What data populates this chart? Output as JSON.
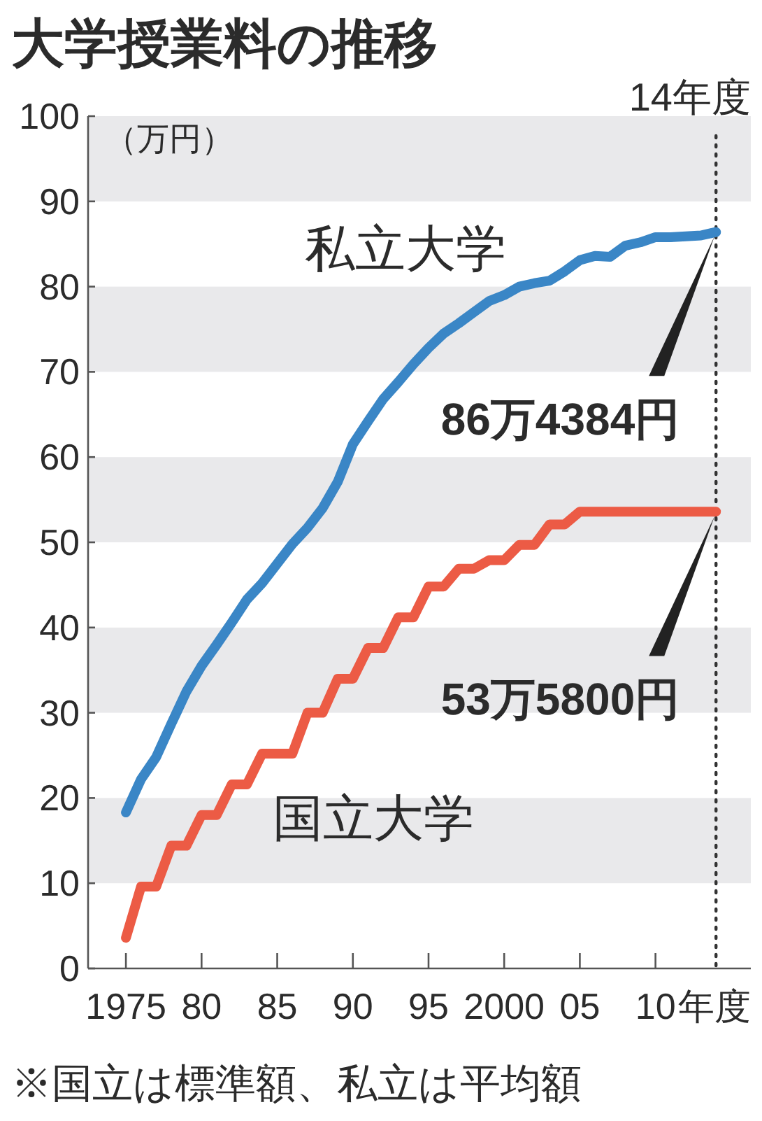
{
  "chart_data": {
    "type": "line",
    "title": "大学授業料の推移",
    "ylabel": "（万円）",
    "xlabel": "年度",
    "x": [
      1975,
      1976,
      1977,
      1978,
      1979,
      1980,
      1981,
      1982,
      1983,
      1984,
      1985,
      1986,
      1987,
      1988,
      1989,
      1990,
      1991,
      1992,
      1993,
      1994,
      1995,
      1996,
      1997,
      1998,
      1999,
      2000,
      2001,
      2002,
      2003,
      2004,
      2005,
      2006,
      2007,
      2008,
      2009,
      2010,
      2011,
      2012,
      2013,
      2014
    ],
    "series": [
      {
        "name": "私立大学",
        "color": "#3a86c6",
        "values": [
          18.3,
          22.2,
          24.8,
          28.7,
          32.5,
          35.5,
          38.0,
          40.6,
          43.3,
          45.2,
          47.5,
          49.8,
          51.7,
          54.0,
          57.1,
          61.5,
          64.2,
          66.8,
          68.8,
          70.9,
          72.8,
          74.5,
          75.7,
          77.0,
          78.3,
          79.0,
          80.0,
          80.4,
          80.7,
          81.8,
          83.1,
          83.6,
          83.5,
          84.8,
          85.2,
          85.8,
          85.8,
          85.9,
          86.0,
          86.4
        ]
      },
      {
        "name": "国立大学",
        "color": "#ec5b45",
        "values": [
          3.6,
          9.6,
          9.6,
          14.4,
          14.4,
          18.0,
          18.0,
          21.6,
          21.6,
          25.2,
          25.2,
          25.2,
          30.0,
          30.0,
          34.0,
          34.0,
          37.6,
          37.6,
          41.2,
          41.2,
          44.8,
          44.8,
          46.9,
          46.9,
          47.9,
          47.9,
          49.7,
          49.7,
          52.1,
          52.1,
          53.6,
          53.6,
          53.6,
          53.6,
          53.6,
          53.6,
          53.6,
          53.6,
          53.6,
          53.6
        ]
      }
    ],
    "xlim": [
      1972.5,
      2016.3
    ],
    "ylim": [
      0,
      100
    ],
    "xticks": [
      1975,
      {
        "value": 1980,
        "label": "80"
      },
      {
        "value": 1985,
        "label": "85"
      },
      {
        "value": 1990,
        "label": "90"
      },
      {
        "value": 1995,
        "label": "95"
      },
      2000,
      {
        "value": 2005,
        "label": "05"
      },
      {
        "value": 2010,
        "label": "10"
      }
    ],
    "yticks": [
      0,
      10,
      20,
      30,
      40,
      50,
      60,
      70,
      80,
      90,
      100
    ],
    "legend": false,
    "line_style": "solid",
    "bands": [
      {
        "axis": "y",
        "from": 10,
        "to": 20,
        "color": "#e9e9eb"
      },
      {
        "axis": "y",
        "from": 30,
        "to": 40,
        "color": "#e9e9eb"
      },
      {
        "axis": "y",
        "from": 50,
        "to": 60,
        "color": "#e9e9eb"
      },
      {
        "axis": "y",
        "from": 70,
        "to": 80,
        "color": "#e9e9eb"
      },
      {
        "axis": "y",
        "from": 90,
        "to": 100,
        "color": "#e9e9eb"
      }
    ],
    "ref_lines": [
      {
        "axis": "x",
        "value": 2014,
        "label": "14年度",
        "line_style": "dotted",
        "color": "#333333"
      }
    ],
    "annotations": [
      {
        "text": "86万4384円",
        "x": 2014,
        "y": 86.4384
      },
      {
        "text": "53万5800円",
        "x": 2014,
        "y": 53.58
      },
      "※国立は標準額、私立は平均額"
    ]
  }
}
